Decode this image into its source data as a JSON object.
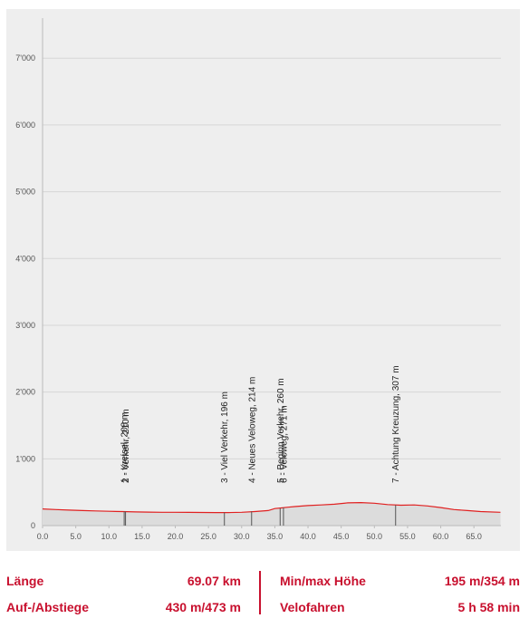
{
  "colors": {
    "profile_line": "#e02020",
    "profile_fill": "#dcdcdc",
    "grid": "#d6d6d6",
    "stats_text": "#c8102e",
    "panel_bg": "#eeeeee"
  },
  "chart_data": {
    "type": "area",
    "xlim": [
      0,
      69.07
    ],
    "ylim": [
      0,
      7600
    ],
    "x_ticks": [
      0,
      5,
      10,
      15,
      20,
      25,
      30,
      35,
      40,
      45,
      50,
      55,
      60,
      65
    ],
    "x_tick_labels": [
      "0.0",
      "5.0",
      "10.0",
      "15.0",
      "20.0",
      "25.0",
      "30.0",
      "35.0",
      "40.0",
      "45.0",
      "50.0",
      "55.0",
      "60.0",
      "65.0"
    ],
    "y_ticks": [
      0,
      1000,
      2000,
      3000,
      4000,
      5000,
      6000,
      7000
    ],
    "y_tick_labels": [
      "0",
      "1'000",
      "2'000",
      "3'000",
      "4'000",
      "5'000",
      "6'000",
      "7'000"
    ],
    "grid": true,
    "x": [
      0,
      2,
      4,
      6,
      8,
      10,
      12,
      14,
      16,
      18,
      20,
      22,
      24,
      26,
      28,
      30,
      32,
      34,
      35,
      36,
      37,
      38,
      40,
      42,
      44,
      46,
      48,
      50,
      52,
      54,
      56,
      58,
      60,
      62,
      64,
      66,
      69
    ],
    "elevation": [
      250,
      240,
      232,
      225,
      220,
      215,
      210,
      205,
      202,
      200,
      200,
      198,
      197,
      196,
      196,
      200,
      210,
      225,
      255,
      265,
      275,
      285,
      300,
      310,
      320,
      340,
      345,
      335,
      315,
      305,
      310,
      295,
      270,
      240,
      225,
      210,
      200
    ],
    "waypoints": [
      {
        "km": 12.3,
        "elevation": 210,
        "label": "1 - Kreisel, 208 m"
      },
      {
        "km": 12.5,
        "elevation": 210,
        "label": "2 - Verkehr, 210 m"
      },
      {
        "km": 27.4,
        "elevation": 196,
        "label": "3 - Viel Verkehr, 196 m"
      },
      {
        "km": 31.5,
        "elevation": 214,
        "label": "4 - Neues Veloweg, 214 m"
      },
      {
        "km": 35.8,
        "elevation": 260,
        "label": "5 - Beginn Verkehr, 260 m"
      },
      {
        "km": 36.3,
        "elevation": 271,
        "label": "6 - Veloweg, 271 m"
      },
      {
        "km": 53.2,
        "elevation": 307,
        "label": "7 - Achtung Kreuzung, 307 m"
      }
    ]
  },
  "stats": {
    "length_label": "Länge",
    "length_value": "69.07 km",
    "minmax_label": "Min/max Höhe",
    "minmax_value": "195 m/354 m",
    "ascent_label": "Auf-/Abstiege",
    "ascent_value": "430 m/473 m",
    "cycling_label": "Velofahren",
    "cycling_value": "5 h 58 min"
  }
}
